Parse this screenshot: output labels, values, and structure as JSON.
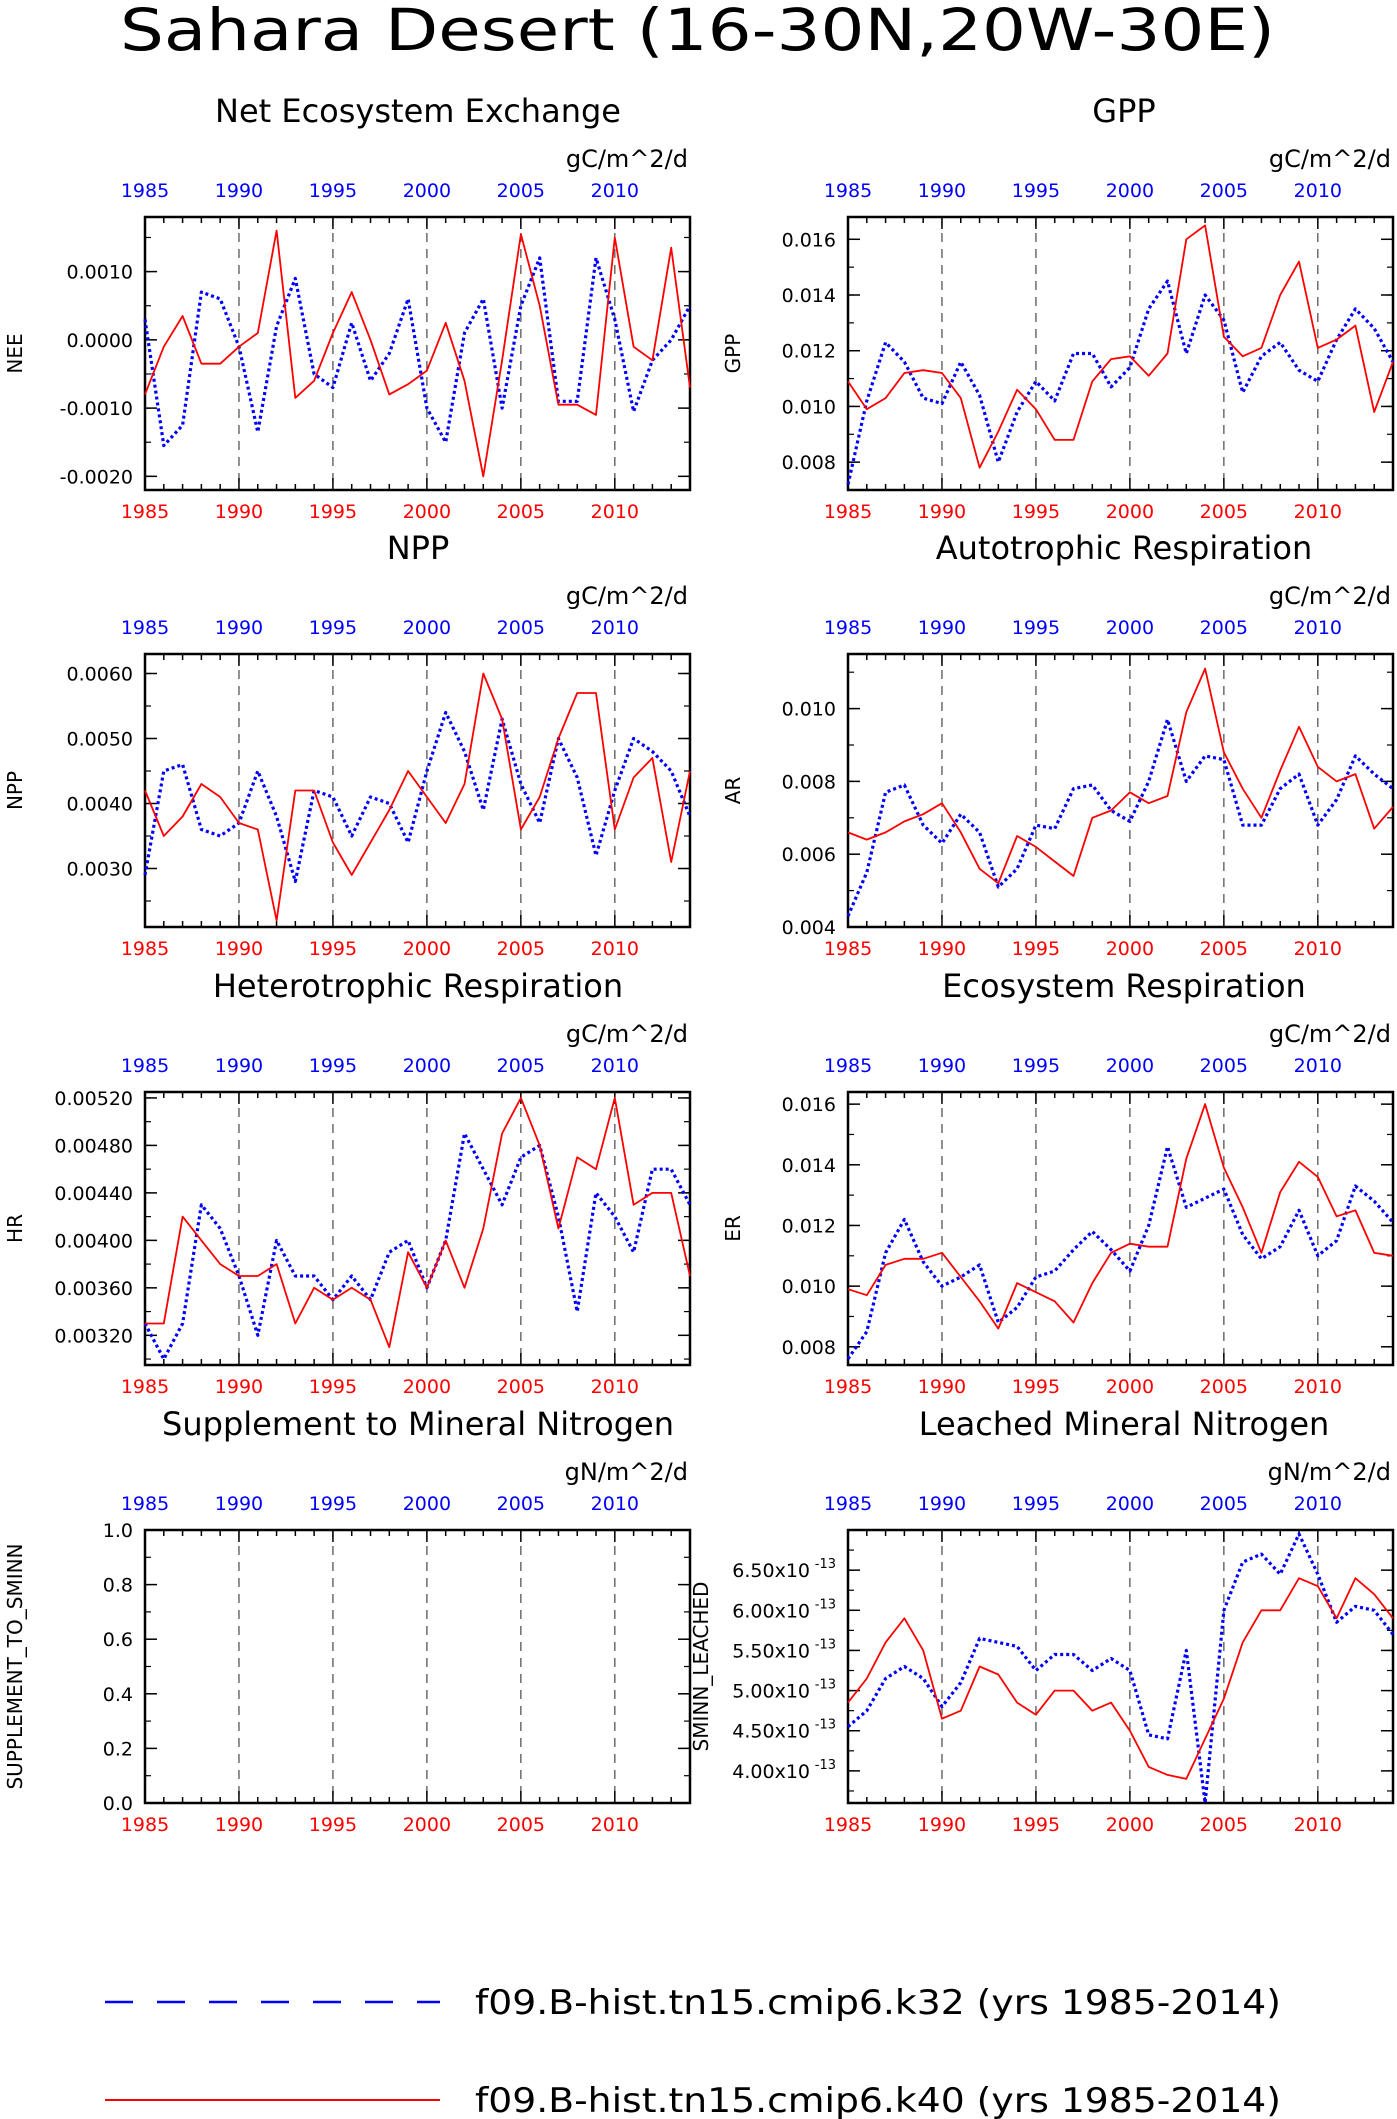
{
  "page_title": "Sahara Desert (16-30N,20W-30E)",
  "colors": {
    "red": "#ff0000",
    "blue": "#0000ff",
    "axis": "#000000",
    "grid": "#555555"
  },
  "years": [
    1985,
    1986,
    1987,
    1988,
    1989,
    1990,
    1991,
    1992,
    1993,
    1994,
    1995,
    1996,
    1997,
    1998,
    1999,
    2000,
    2001,
    2002,
    2003,
    2004,
    2005,
    2006,
    2007,
    2008,
    2009,
    2010,
    2011,
    2012,
    2013,
    2014
  ],
  "x_tick_labels": [
    "1985",
    "1990",
    "1995",
    "2000",
    "2005",
    "2010"
  ],
  "legend": [
    {
      "label": "f09.B-hist.tn15.cmip6.k32 (yrs 1985-2014)",
      "color": "#0000ff",
      "style": "dashed"
    },
    {
      "label": "f09.B-hist.tn15.cmip6.k40 (yrs 1985-2014)",
      "color": "#ff0000",
      "style": "solid"
    }
  ],
  "chart_data": [
    {
      "type": "line",
      "title": "Net Ecosystem Exchange",
      "ylabel": "NEE",
      "units": "gC/m^2/d",
      "ylim": [
        -0.0022,
        0.0018
      ],
      "yticks": [
        -0.002,
        -0.001,
        0.0,
        0.001
      ],
      "ytick_labels": [
        "-0.0020",
        "-0.0010",
        "0.0000",
        "0.0010"
      ],
      "series": [
        {
          "color": "#0000ff",
          "values": [
            0.0003,
            -0.00155,
            -0.00125,
            0.0007,
            0.0006,
            -0.0001,
            -0.00135,
            0.0002,
            0.0009,
            -0.0005,
            -0.0007,
            0.00025,
            -0.0006,
            -0.0002,
            0.0006,
            -0.001,
            -0.0015,
            0.0001,
            0.0006,
            -0.001,
            0.0005,
            0.0012,
            -0.0009,
            -0.0009,
            0.0012,
            0.0003,
            -0.00105,
            -0.0003,
            0.0,
            0.0005
          ]
        },
        {
          "color": "#ff0000",
          "values": [
            -0.0008,
            -0.0001,
            0.00035,
            -0.00035,
            -0.00035,
            -0.0001,
            0.0001,
            0.0016,
            -0.00085,
            -0.0006,
            0.0001,
            0.0007,
            0.0,
            -0.0008,
            -0.00065,
            -0.00045,
            0.00025,
            -0.0006,
            -0.002,
            -0.0003,
            0.00155,
            0.0005,
            -0.00095,
            -0.00095,
            -0.0011,
            0.0015,
            -0.0001,
            -0.0003,
            0.00135,
            -0.0007
          ]
        }
      ]
    },
    {
      "type": "line",
      "title": "GPP",
      "ylabel": "GPP",
      "units": "gC/m^2/d",
      "ylim": [
        0.007,
        0.0168
      ],
      "yticks": [
        0.008,
        0.01,
        0.012,
        0.014,
        0.016
      ],
      "ytick_labels": [
        "0.008",
        "0.010",
        "0.012",
        "0.014",
        "0.016"
      ],
      "series": [
        {
          "color": "#0000ff",
          "values": [
            0.0072,
            0.0102,
            0.0123,
            0.0116,
            0.0103,
            0.0101,
            0.0116,
            0.0104,
            0.008,
            0.0098,
            0.0109,
            0.0102,
            0.0119,
            0.0119,
            0.0107,
            0.0114,
            0.0135,
            0.0145,
            0.0119,
            0.014,
            0.0131,
            0.0105,
            0.0118,
            0.0123,
            0.0113,
            0.0109,
            0.0124,
            0.0135,
            0.0128,
            0.0116
          ]
        },
        {
          "color": "#ff0000",
          "values": [
            0.0109,
            0.0099,
            0.0103,
            0.0112,
            0.0113,
            0.0112,
            0.0103,
            0.0078,
            0.0091,
            0.0106,
            0.0099,
            0.0088,
            0.0088,
            0.0109,
            0.0117,
            0.0118,
            0.0111,
            0.0119,
            0.016,
            0.0165,
            0.0125,
            0.0118,
            0.0121,
            0.014,
            0.0152,
            0.0121,
            0.0124,
            0.0129,
            0.0098,
            0.0116
          ]
        }
      ]
    },
    {
      "type": "line",
      "title": "NPP",
      "ylabel": "NPP",
      "units": "gC/m^2/d",
      "ylim": [
        0.0021,
        0.0063
      ],
      "yticks": [
        0.003,
        0.004,
        0.005,
        0.006
      ],
      "ytick_labels": [
        "0.0030",
        "0.0040",
        "0.0050",
        "0.0060"
      ],
      "series": [
        {
          "color": "#0000ff",
          "values": [
            0.0029,
            0.0045,
            0.0046,
            0.0036,
            0.0035,
            0.0037,
            0.0045,
            0.0038,
            0.0028,
            0.0042,
            0.0041,
            0.0035,
            0.0041,
            0.004,
            0.0034,
            0.0045,
            0.0054,
            0.0048,
            0.0039,
            0.0053,
            0.0043,
            0.0037,
            0.005,
            0.0044,
            0.0032,
            0.0042,
            0.005,
            0.0048,
            0.0045,
            0.0038
          ]
        },
        {
          "color": "#ff0000",
          "values": [
            0.0042,
            0.0035,
            0.0038,
            0.0043,
            0.0041,
            0.0037,
            0.0036,
            0.0022,
            0.0042,
            0.0042,
            0.0034,
            0.0029,
            0.0034,
            0.0039,
            0.0045,
            0.0041,
            0.0037,
            0.0043,
            0.006,
            0.0053,
            0.0036,
            0.0041,
            0.005,
            0.0057,
            0.0057,
            0.0036,
            0.0044,
            0.0047,
            0.0031,
            0.0045
          ]
        }
      ]
    },
    {
      "type": "line",
      "title": "Autotrophic Respiration",
      "ylabel": "AR",
      "units": "gC/m^2/d",
      "ylim": [
        0.004,
        0.0115
      ],
      "yticks": [
        0.004,
        0.006,
        0.008,
        0.01
      ],
      "ytick_labels": [
        "0.004",
        "0.006",
        "0.008",
        "0.010"
      ],
      "series": [
        {
          "color": "#0000ff",
          "values": [
            0.0043,
            0.0055,
            0.0077,
            0.0079,
            0.0068,
            0.0063,
            0.0071,
            0.0066,
            0.0051,
            0.0056,
            0.0068,
            0.0067,
            0.0078,
            0.0079,
            0.0072,
            0.0069,
            0.008,
            0.0097,
            0.008,
            0.0087,
            0.0086,
            0.0068,
            0.0068,
            0.0078,
            0.0082,
            0.0068,
            0.0075,
            0.0087,
            0.0082,
            0.0078
          ]
        },
        {
          "color": "#ff0000",
          "values": [
            0.0066,
            0.0064,
            0.0066,
            0.0069,
            0.0071,
            0.0074,
            0.0066,
            0.0056,
            0.0052,
            0.0065,
            0.0062,
            0.0058,
            0.0054,
            0.007,
            0.0072,
            0.0077,
            0.0074,
            0.0076,
            0.0099,
            0.0111,
            0.0088,
            0.0078,
            0.007,
            0.0083,
            0.0095,
            0.0084,
            0.008,
            0.0082,
            0.0067,
            0.0073
          ]
        }
      ]
    },
    {
      "type": "line",
      "title": "Heterotrophic Respiration",
      "ylabel": "HR",
      "units": "gC/m^2/d",
      "ylim": [
        0.00295,
        0.00525
      ],
      "yticks": [
        0.0032,
        0.0036,
        0.004,
        0.0044,
        0.0048,
        0.0052
      ],
      "ytick_labels": [
        "0.00320",
        "0.00360",
        "0.00400",
        "0.00440",
        "0.00480",
        "0.00520"
      ],
      "series": [
        {
          "color": "#0000ff",
          "values": [
            0.0033,
            0.003,
            0.0033,
            0.0043,
            0.0041,
            0.0037,
            0.0032,
            0.004,
            0.0037,
            0.0037,
            0.0035,
            0.0037,
            0.0035,
            0.0039,
            0.004,
            0.0036,
            0.004,
            0.0049,
            0.0046,
            0.0043,
            0.0047,
            0.0048,
            0.0042,
            0.0034,
            0.0044,
            0.0042,
            0.0039,
            0.0046,
            0.0046,
            0.0043
          ]
        },
        {
          "color": "#ff0000",
          "values": [
            0.0033,
            0.0033,
            0.0042,
            0.004,
            0.0038,
            0.0037,
            0.0037,
            0.0038,
            0.0033,
            0.0036,
            0.0035,
            0.0036,
            0.0035,
            0.0031,
            0.0039,
            0.0036,
            0.004,
            0.0036,
            0.0041,
            0.0049,
            0.0052,
            0.0048,
            0.0041,
            0.0047,
            0.0046,
            0.0052,
            0.0043,
            0.0044,
            0.0044,
            0.0037
          ]
        }
      ]
    },
    {
      "type": "line",
      "title": "Ecosystem Respiration",
      "ylabel": "ER",
      "units": "gC/m^2/d",
      "ylim": [
        0.0074,
        0.0164
      ],
      "yticks": [
        0.008,
        0.01,
        0.012,
        0.014,
        0.016
      ],
      "ytick_labels": [
        "0.008",
        "0.010",
        "0.012",
        "0.014",
        "0.016"
      ],
      "series": [
        {
          "color": "#0000ff",
          "values": [
            0.0076,
            0.0085,
            0.0111,
            0.0122,
            0.0108,
            0.01,
            0.0103,
            0.0107,
            0.0088,
            0.0093,
            0.0103,
            0.0105,
            0.0112,
            0.0118,
            0.0112,
            0.0105,
            0.012,
            0.0146,
            0.0126,
            0.0129,
            0.0132,
            0.0117,
            0.0109,
            0.0113,
            0.0125,
            0.011,
            0.0115,
            0.0133,
            0.0128,
            0.0121
          ]
        },
        {
          "color": "#ff0000",
          "values": [
            0.0099,
            0.0097,
            0.0107,
            0.0109,
            0.0109,
            0.0111,
            0.0103,
            0.0095,
            0.0086,
            0.0101,
            0.0098,
            0.0095,
            0.0088,
            0.0101,
            0.0111,
            0.0114,
            0.0113,
            0.0113,
            0.0142,
            0.016,
            0.0139,
            0.0126,
            0.0111,
            0.0131,
            0.0141,
            0.0136,
            0.0123,
            0.0125,
            0.0111,
            0.011
          ]
        }
      ]
    },
    {
      "type": "line",
      "title": "Supplement to Mineral Nitrogen",
      "ylabel": "SUPPLEMENT_TO_SMINN",
      "units": "gN/m^2/d",
      "ylim": [
        0.0,
        1.0
      ],
      "yticks": [
        0.0,
        0.2,
        0.4,
        0.6,
        0.8,
        1.0
      ],
      "ytick_labels": [
        "0.0",
        "0.2",
        "0.4",
        "0.6",
        "0.8",
        "1.0"
      ],
      "series": []
    },
    {
      "type": "line",
      "title": "Leached Mineral Nitrogen",
      "ylabel": "SMINN_LEACHED",
      "units": "gN/m^2/d",
      "ylim": [
        3.6e-13,
        7e-13
      ],
      "yticks": [
        4e-13,
        4.5e-13,
        5e-13,
        5.5e-13,
        6e-13,
        6.5e-13
      ],
      "ytick_labels": [
        "4.00x10",
        "4.50x10",
        "5.00x10",
        "5.50x10",
        "6.00x10",
        "6.50x10"
      ],
      "ytick_exponent": "-13",
      "series": [
        {
          "color": "#0000ff",
          "values": [
            4.55e-13,
            4.75e-13,
            5.15e-13,
            5.3e-13,
            5.15e-13,
            4.8e-13,
            5.1e-13,
            5.65e-13,
            5.6e-13,
            5.55e-13,
            5.25e-13,
            5.45e-13,
            5.45e-13,
            5.25e-13,
            5.4e-13,
            5.25e-13,
            4.45e-13,
            4.4e-13,
            5.5e-13,
            3.6e-13,
            6e-13,
            6.6e-13,
            6.7e-13,
            6.45e-13,
            6.95e-13,
            6.45e-13,
            5.85e-13,
            6.05e-13,
            6e-13,
            5.7e-13
          ]
        },
        {
          "color": "#ff0000",
          "values": [
            4.85e-13,
            5.15e-13,
            5.6e-13,
            5.9e-13,
            5.5e-13,
            4.65e-13,
            4.75e-13,
            5.3e-13,
            5.2e-13,
            4.85e-13,
            4.7e-13,
            5e-13,
            5e-13,
            4.75e-13,
            4.85e-13,
            4.5e-13,
            4.05e-13,
            3.95e-13,
            3.9e-13,
            4.4e-13,
            4.9e-13,
            5.6e-13,
            6e-13,
            6e-13,
            6.4e-13,
            6.3e-13,
            5.9e-13,
            6.4e-13,
            6.2e-13,
            5.9e-13
          ]
        }
      ]
    }
  ]
}
